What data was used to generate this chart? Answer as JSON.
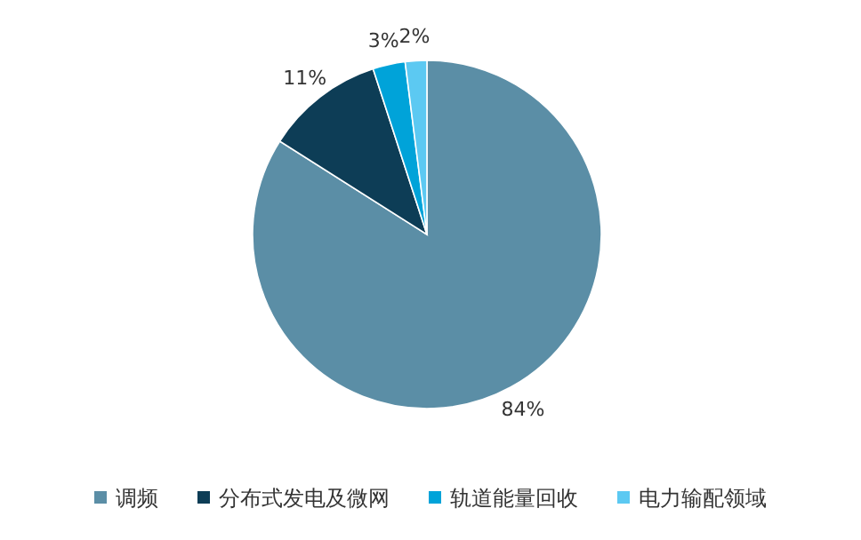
{
  "chart_data": {
    "type": "pie",
    "categories": [
      "调频",
      "分布式发电及微网",
      "轨道能量回收",
      "电力输配领域"
    ],
    "values": [
      84,
      11,
      3,
      2
    ],
    "value_labels": [
      "84%",
      "11%",
      "3%",
      "2%"
    ],
    "colors": [
      "#5b8ea6",
      "#0d3d56",
      "#00a3d9",
      "#5cc9f2"
    ],
    "legend": "bottom"
  }
}
